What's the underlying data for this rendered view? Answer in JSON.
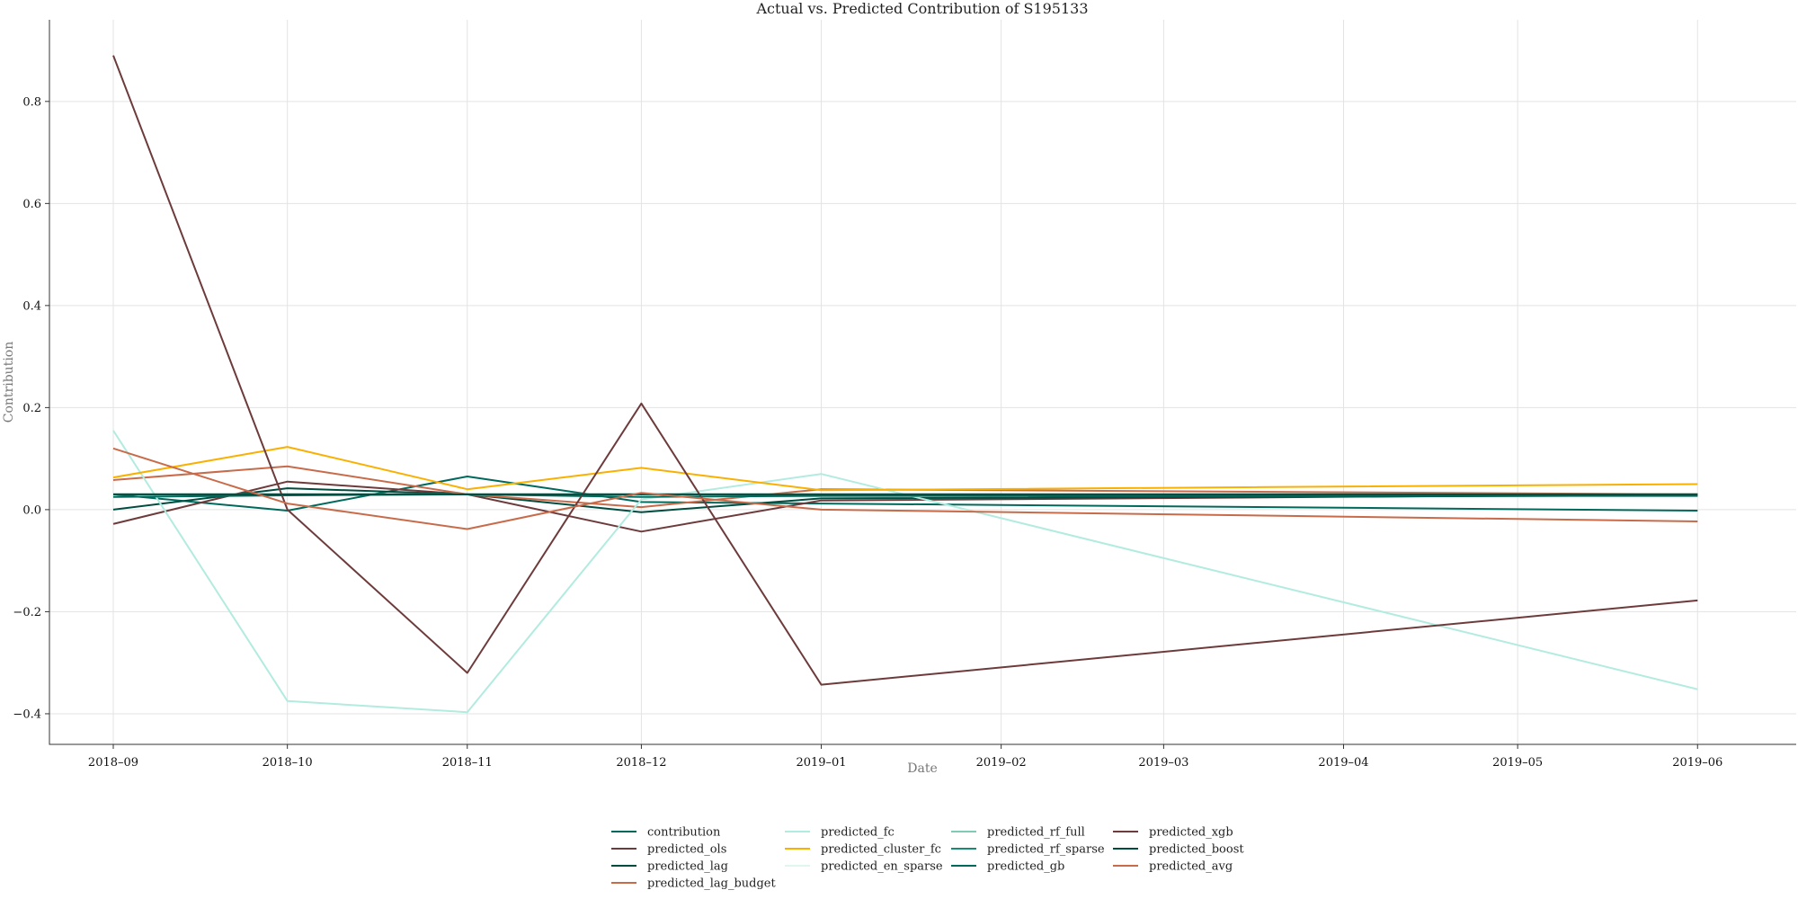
{
  "chart_data": {
    "type": "line",
    "title": "Actual vs. Predicted Contribution of S195133",
    "xlabel": "Date",
    "ylabel": "Contribution",
    "grid": true,
    "legend_position": "bottom-center",
    "x": [
      "2018-09",
      "2018-10",
      "2018-11",
      "2018-12",
      "2019-01",
      "2019-06"
    ],
    "x_ticks": [
      "2018–09",
      "2018–10",
      "2018–11",
      "2018–12",
      "2019–01",
      "2019–02",
      "2019–03",
      "2019–04",
      "2019–05",
      "2019–06"
    ],
    "y_ticks": [
      -0.4,
      -0.2,
      0.0,
      0.2,
      0.4,
      0.6,
      0.8
    ],
    "y_tick_labels": [
      "−0.4",
      "−0.2",
      "0.0",
      "0.2",
      "0.4",
      "0.6",
      "0.8"
    ],
    "xlim": [
      "2018-08-21",
      "2019-06-18"
    ],
    "ylim": [
      -0.46,
      0.96
    ],
    "series": [
      {
        "name": "contribution",
        "color": "#00695c",
        "values": [
          0.03,
          -0.002,
          0.065,
          0.015,
          0.012,
          -0.002
        ]
      },
      {
        "name": "predicted_ols",
        "color": "#6d3b3b",
        "values": [
          -0.028,
          0.055,
          0.03,
          -0.043,
          0.018,
          0.03
        ]
      },
      {
        "name": "predicted_lag",
        "color": "#004d40",
        "values": [
          0.0,
          0.042,
          0.03,
          -0.005,
          0.022,
          0.028
        ]
      },
      {
        "name": "predicted_lag_budget",
        "color": "#c86b4a",
        "values": [
          0.058,
          0.085,
          0.03,
          0.005,
          0.04,
          0.03
        ]
      },
      {
        "name": "predicted_fc",
        "color": "#b2ebdf",
        "values": [
          0.155,
          -0.375,
          -0.397,
          0.02,
          0.07,
          -0.352
        ]
      },
      {
        "name": "predicted_cluster_fc",
        "color": "#f9b000",
        "values": [
          0.063,
          0.123,
          0.04,
          0.082,
          0.038,
          0.05
        ]
      },
      {
        "name": "predicted_en_sparse",
        "color": "#e0f5f0",
        "values": [
          0.03,
          0.03,
          0.03,
          0.03,
          0.03,
          0.03
        ]
      },
      {
        "name": "predicted_rf_full",
        "color": "#80cbb5",
        "values": [
          0.03,
          0.03,
          0.03,
          0.03,
          0.03,
          0.03
        ]
      },
      {
        "name": "predicted_rf_sparse",
        "color": "#1a8a74",
        "values": [
          0.03,
          0.03,
          0.03,
          0.03,
          0.03,
          0.03
        ]
      },
      {
        "name": "predicted_gb",
        "color": "#00695c",
        "values": [
          0.025,
          0.028,
          0.03,
          0.025,
          0.027,
          0.027
        ]
      },
      {
        "name": "predicted_xgb",
        "color": "#6d3b3b",
        "values": [
          0.89,
          0.0,
          -0.32,
          0.208,
          -0.343,
          -0.178
        ]
      },
      {
        "name": "predicted_boost",
        "color": "#004d40",
        "values": [
          0.03,
          0.03,
          0.03,
          0.03,
          0.03,
          0.03
        ]
      },
      {
        "name": "predicted_avg",
        "color": "#c86b4a",
        "values": [
          0.12,
          0.012,
          -0.038,
          0.033,
          0.0,
          -0.023
        ]
      }
    ]
  }
}
